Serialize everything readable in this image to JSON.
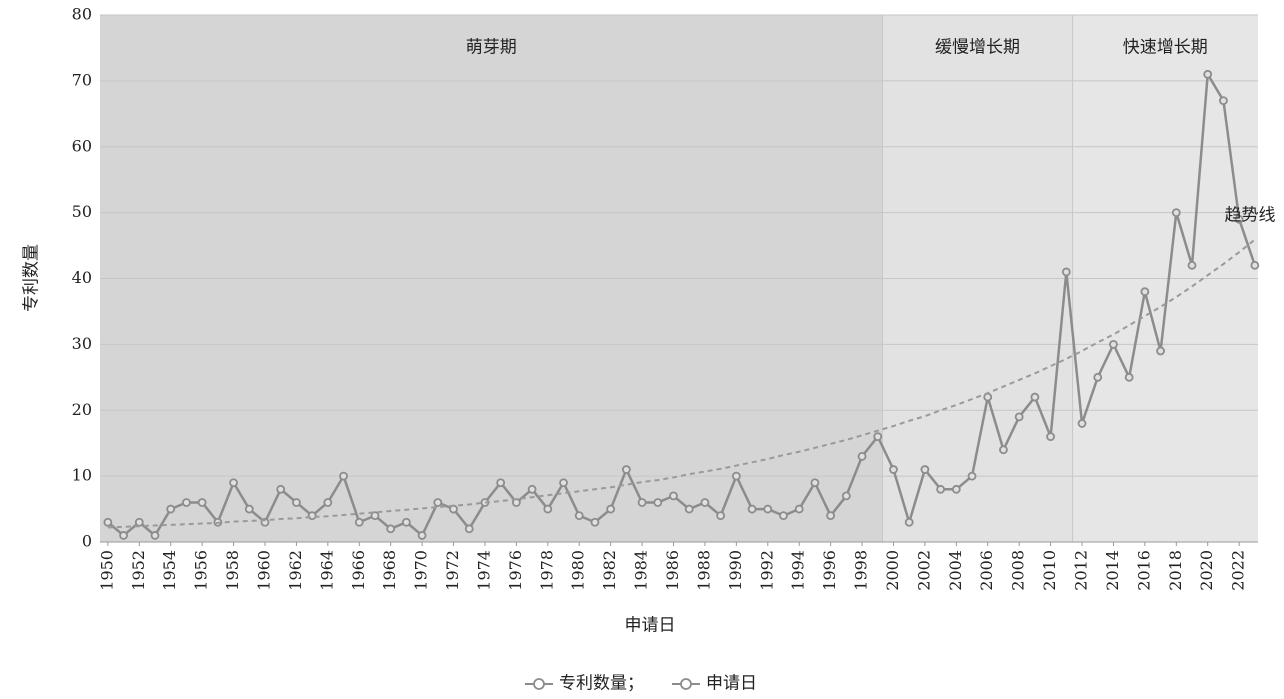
{
  "chart_data": {
    "type": "line",
    "x_label": "申请日",
    "y_label": "专利数量",
    "x": [
      1950,
      1951,
      1952,
      1953,
      1954,
      1955,
      1956,
      1957,
      1958,
      1959,
      1960,
      1961,
      1962,
      1963,
      1964,
      1965,
      1966,
      1967,
      1968,
      1969,
      1970,
      1971,
      1972,
      1973,
      1974,
      1975,
      1976,
      1977,
      1978,
      1979,
      1980,
      1981,
      1982,
      1983,
      1984,
      1985,
      1986,
      1987,
      1988,
      1989,
      1990,
      1991,
      1992,
      1993,
      1994,
      1995,
      1996,
      1997,
      1998,
      1999,
      2000,
      2001,
      2002,
      2003,
      2004,
      2005,
      2006,
      2007,
      2008,
      2009,
      2010,
      2011,
      2012,
      2013,
      2014,
      2015,
      2016,
      2017,
      2018,
      2019,
      2020,
      2021,
      2022,
      2023
    ],
    "xlim": [
      1949.5,
      2023.2
    ],
    "xticks": [
      1950,
      1952,
      1954,
      1956,
      1958,
      1960,
      1962,
      1964,
      1966,
      1968,
      1970,
      1972,
      1974,
      1976,
      1978,
      1980,
      1982,
      1984,
      1986,
      1988,
      1990,
      1992,
      1994,
      1996,
      1998,
      2000,
      2002,
      2004,
      2006,
      2008,
      2010,
      2012,
      2014,
      2016,
      2018,
      2020,
      2022
    ],
    "ylim": [
      0,
      80
    ],
    "yticks": [
      0,
      10,
      20,
      30,
      40,
      50,
      60,
      70,
      80
    ],
    "grid": true,
    "series": [
      {
        "color": "#8c8c8c",
        "values": [
          3,
          1,
          3,
          1,
          5,
          6,
          6,
          3,
          9,
          5,
          3,
          8,
          6,
          4,
          6,
          10,
          3,
          4,
          2,
          3,
          1,
          6,
          5,
          2,
          6,
          9,
          6,
          8,
          5,
          9,
          4,
          3,
          5,
          11,
          6,
          6,
          7,
          5,
          6,
          4,
          10,
          5,
          5,
          4,
          5,
          9,
          4,
          7,
          13,
          16,
          11,
          3,
          11,
          8,
          8,
          10,
          22,
          14,
          19,
          22,
          16,
          41,
          18,
          25,
          30,
          25,
          38,
          29,
          50,
          42,
          71,
          67,
          49,
          42
        ]
      },
      {
        "name": "趋势线",
        "color": "#9a9a9a",
        "dashed": true,
        "values": [
          2.2,
          2.3,
          2.4,
          2.5,
          2.6,
          2.7,
          2.8,
          2.9,
          3.1,
          3.2,
          3.3,
          3.5,
          3.6,
          3.8,
          3.9,
          4.1,
          4.3,
          4.5,
          4.7,
          4.9,
          5.1,
          5.3,
          5.5,
          5.7,
          6.0,
          6.2,
          6.5,
          6.8,
          7.1,
          7.4,
          7.7,
          8.0,
          8.3,
          8.7,
          9.1,
          9.4,
          9.8,
          10.3,
          10.7,
          11.1,
          11.6,
          12.1,
          12.6,
          13.2,
          13.7,
          14.3,
          14.9,
          15.5,
          16.2,
          16.9,
          17.6,
          18.4,
          19.1,
          20.0,
          20.8,
          21.7,
          22.6,
          23.6,
          24.6,
          25.6,
          26.7,
          27.8,
          29.0,
          30.3,
          31.5,
          32.9,
          34.3,
          35.7,
          37.2,
          38.8,
          40.5,
          42.2,
          44.0,
          45.9
        ]
      }
    ],
    "bands": [
      {
        "label": "萌芽期",
        "start": 1949.5,
        "end": 1999.3,
        "color": "#d5d5d5"
      },
      {
        "label": "缓慢增长期",
        "start": 1999.3,
        "end": 2011.4,
        "color": "#e2e2e2"
      },
      {
        "label": "快速增长期",
        "start": 2011.4,
        "end": 2023.2,
        "color": "#e6e6e6"
      }
    ],
    "legend": [
      "专利数量；",
      "申请日"
    ]
  }
}
